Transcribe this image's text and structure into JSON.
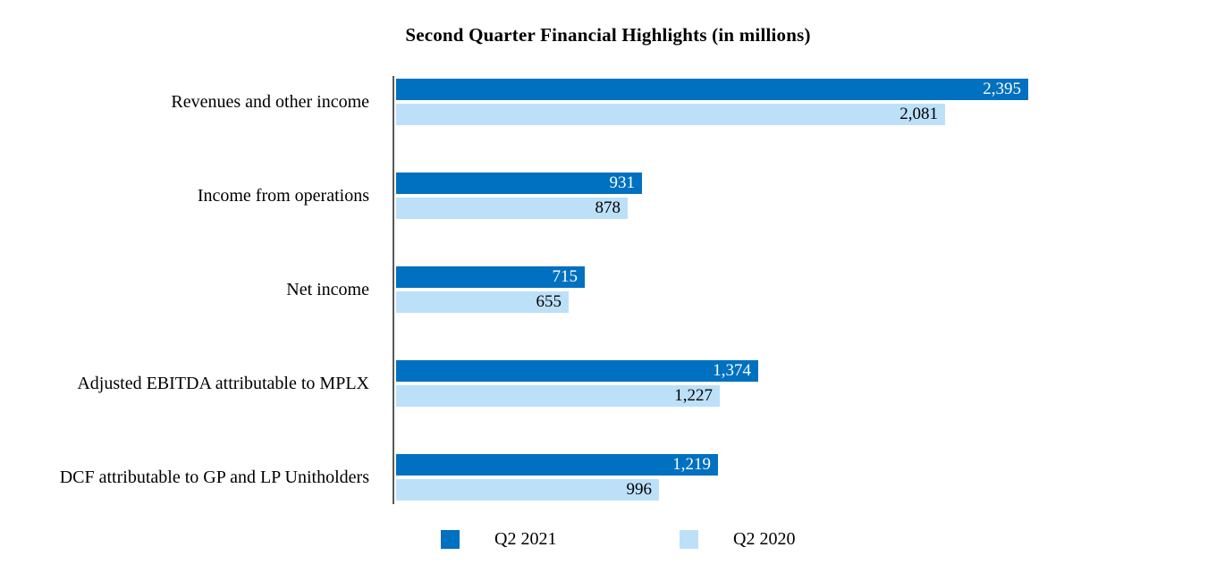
{
  "chart_data": {
    "type": "bar",
    "orientation": "horizontal",
    "title": "Second Quarter Financial Highlights (in millions)",
    "categories": [
      "Revenues and other income",
      "Income from operations",
      "Net income",
      "Adjusted EBITDA attributable to MPLX",
      "DCF attributable to GP and LP Unitholders"
    ],
    "series": [
      {
        "name": "Q2 2021",
        "color": "#0070C0",
        "label_color": "#FFFFFF",
        "values": [
          2395,
          931,
          715,
          1374,
          1219
        ],
        "labels": [
          "2,395",
          "931",
          "715",
          "1,374",
          "1,219"
        ]
      },
      {
        "name": "Q2 2020",
        "color": "#BDE0F9",
        "label_color": "#000000",
        "values": [
          2081,
          878,
          655,
          1227,
          996
        ],
        "labels": [
          "2,081",
          "878",
          "655",
          "1,227",
          "996"
        ]
      }
    ],
    "value_min": 0,
    "grid": "off",
    "legend_position": "bottom",
    "axis_line_color": "#595959",
    "background_color": "#FFFFFF"
  }
}
